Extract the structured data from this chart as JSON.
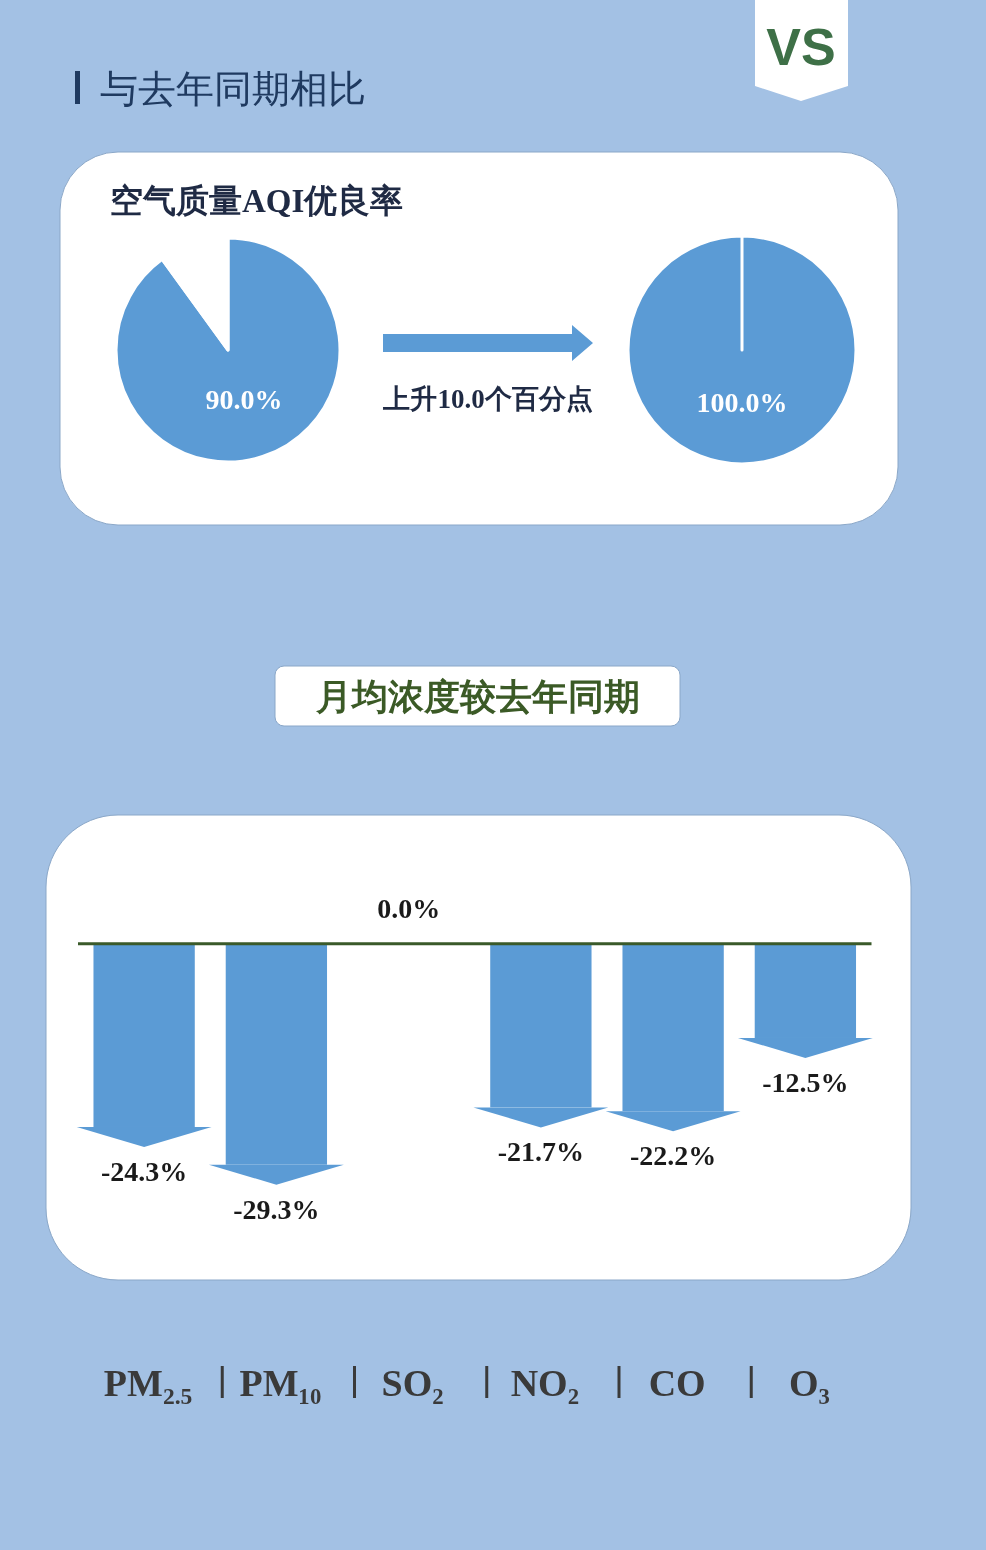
{
  "chart_data": [
    {
      "type": "pie",
      "title": "空气质量AQI优良率",
      "categories": [
        null,
        null
      ],
      "values": [
        90,
        10
      ],
      "colors": [
        "#5b9bd5",
        "#ffffff"
      ],
      "value_labels": [
        "90.0%",
        null
      ],
      "annotations": [
        "与去年同期相比",
        "VS",
        "上升10.0个百分点"
      ]
    },
    {
      "type": "pie",
      "categories": [
        null
      ],
      "values": [
        100
      ],
      "colors": [
        "#5b9bd5"
      ],
      "value_labels": [
        "100.0%"
      ]
    },
    {
      "type": "bar",
      "title": "月均浓度较去年同期",
      "categories": [
        "PM$_{2.5}$",
        "PM₁₀",
        "SO₂",
        "NO₂",
        "CO",
        "O₃"
      ],
      "values": [
        -24.3,
        -29.3,
        0.0,
        -21.7,
        -22.2,
        -12.5
      ],
      "color": "#5b9bd5",
      "value_labels": [
        "-24.3%",
        "-29.3%",
        "0.0%",
        "-21.7%",
        "-22.2%",
        "-12.5%"
      ],
      "tick_labels": "x"
    }
  ]
}
